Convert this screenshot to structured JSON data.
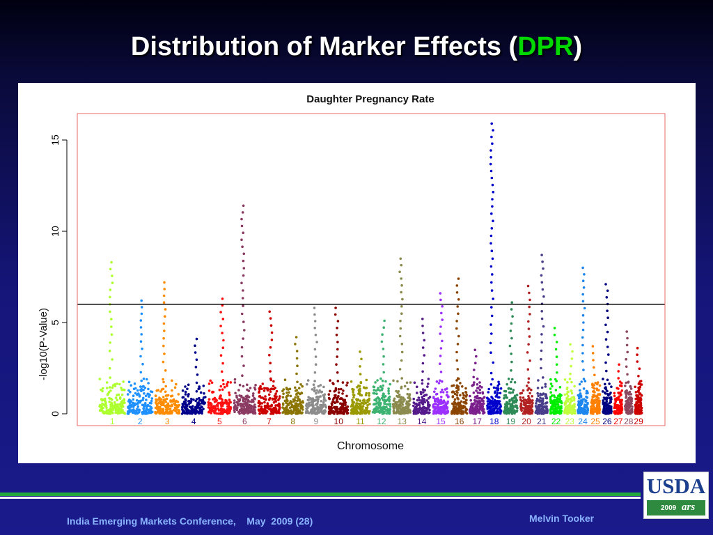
{
  "slide": {
    "title_main": "Distribution of Marker Effects (",
    "title_accent": "DPR",
    "title_end": ")",
    "footer_left": "India Emerging Markets Conference,    May  2009 (28)",
    "footer_right": "Melvin Tooker",
    "logo_text": "USDA",
    "logo_year": "2009",
    "logo_mark": "ars"
  },
  "chart_data": {
    "type": "scatter",
    "title": "Daughter Pregnancy Rate",
    "xlabel": "Chromosome",
    "ylabel": "-log10(P-Value)",
    "ylim": [
      0,
      17
    ],
    "yticks": [
      0,
      5,
      10,
      15
    ],
    "threshold": 6,
    "grid": false,
    "legend": "none",
    "chromosomes": [
      {
        "label": "1",
        "color": "#adff2f",
        "max": 8.3
      },
      {
        "label": "2",
        "color": "#1e90ff",
        "max": 6.2
      },
      {
        "label": "3",
        "color": "#ff8c00",
        "max": 7.2
      },
      {
        "label": "4",
        "color": "#00008b",
        "max": 4.1
      },
      {
        "label": "5",
        "color": "#ff1010",
        "max": 6.3
      },
      {
        "label": "6",
        "color": "#8b3a62",
        "max": 11.4
      },
      {
        "label": "7",
        "color": "#cd0000",
        "max": 5.6
      },
      {
        "label": "8",
        "color": "#8b7500",
        "max": 4.2
      },
      {
        "label": "9",
        "color": "#8c8c8c",
        "max": 5.8
      },
      {
        "label": "10",
        "color": "#8b0000",
        "max": 5.8
      },
      {
        "label": "11",
        "color": "#9a9a00",
        "max": 3.4
      },
      {
        "label": "12",
        "color": "#3cb371",
        "max": 5.1
      },
      {
        "label": "13",
        "color": "#8b8b4e",
        "max": 8.5
      },
      {
        "label": "14",
        "color": "#551a8b",
        "max": 5.2
      },
      {
        "label": "15",
        "color": "#9b30ff",
        "max": 6.6
      },
      {
        "label": "16",
        "color": "#8b4500",
        "max": 7.4
      },
      {
        "label": "17",
        "color": "#7a1f8b",
        "max": 3.5
      },
      {
        "label": "18",
        "color": "#0000cd",
        "max": 15.9
      },
      {
        "label": "19",
        "color": "#2e8b57",
        "max": 6.1
      },
      {
        "label": "20",
        "color": "#b22222",
        "max": 7.0
      },
      {
        "label": "21",
        "color": "#483d8b",
        "max": 8.7
      },
      {
        "label": "22",
        "color": "#00ee00",
        "max": 4.7
      },
      {
        "label": "23",
        "color": "#c0ff3e",
        "max": 3.8
      },
      {
        "label": "24",
        "color": "#1c86ee",
        "max": 8.0
      },
      {
        "label": "25",
        "color": "#ff7f00",
        "max": 3.7
      },
      {
        "label": "26",
        "color": "#000080",
        "max": 7.1
      },
      {
        "label": "27",
        "color": "#ff0000",
        "max": 2.7
      },
      {
        "label": "28",
        "color": "#8b475d",
        "max": 4.5
      },
      {
        "label": "29",
        "color": "#cd0000",
        "max": 3.6
      }
    ]
  }
}
